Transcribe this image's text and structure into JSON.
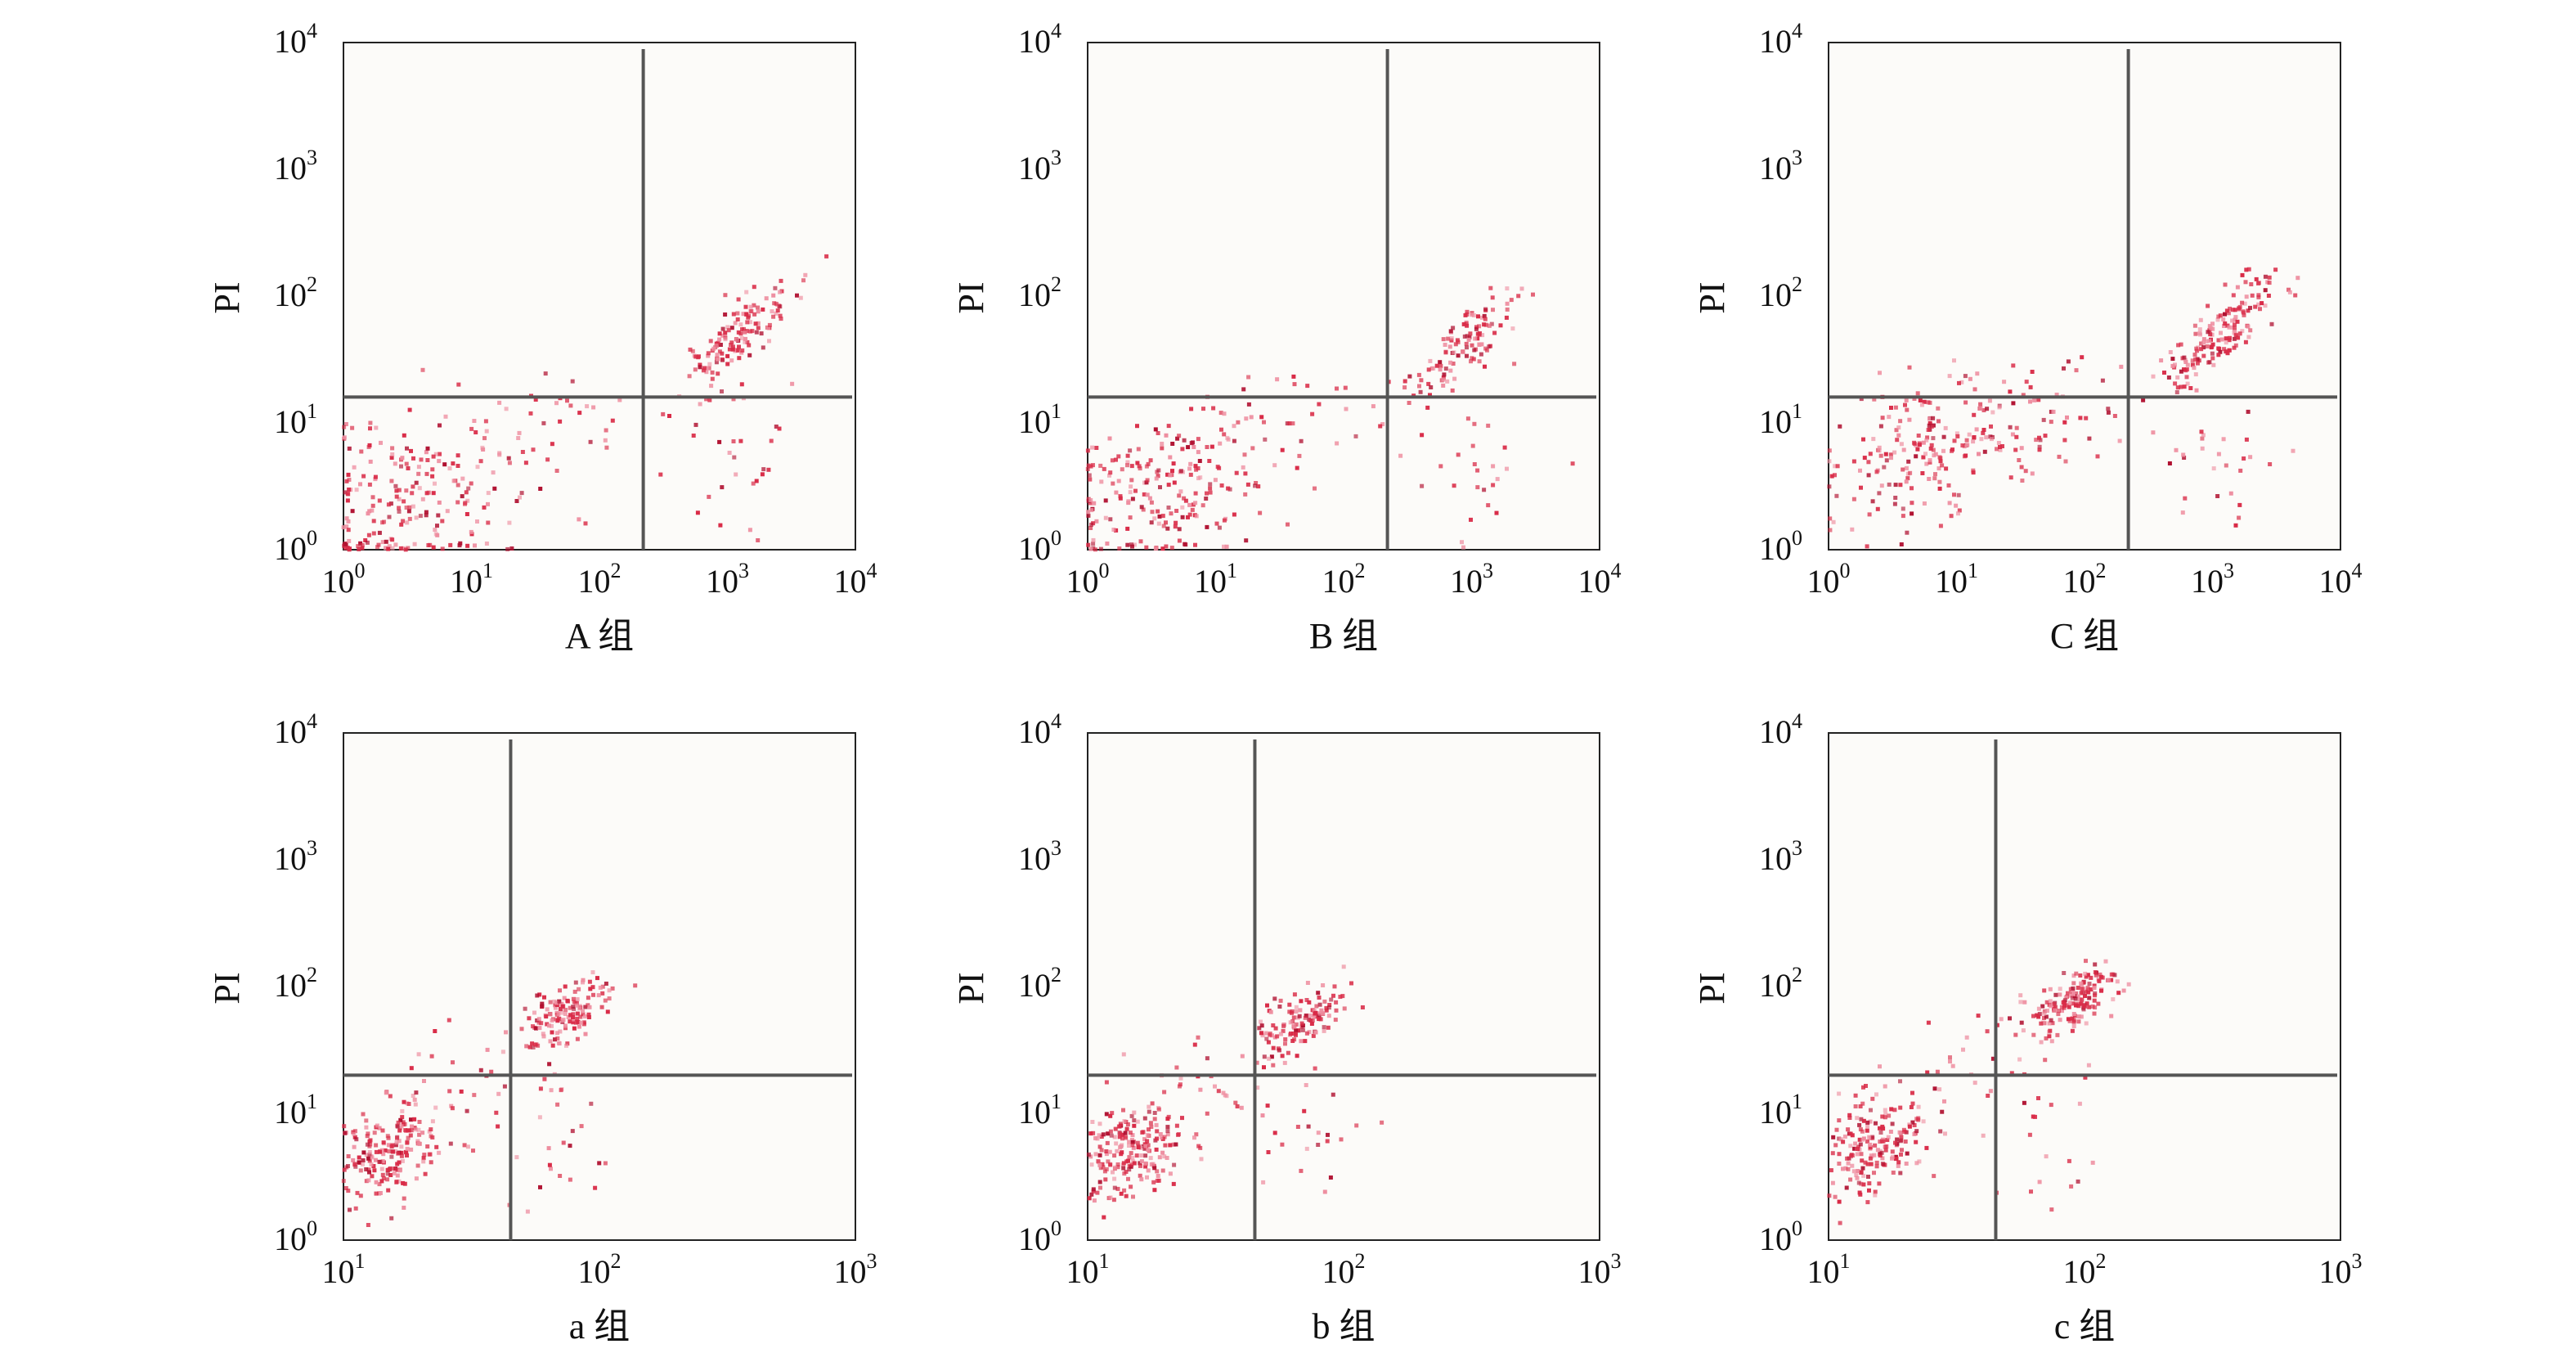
{
  "colors": {
    "point": "#d92b47",
    "point_light": "#ee8ea0",
    "point_dark": "#b01030",
    "gate": "#555555",
    "frame": "#222222",
    "plot_bg": "#fcfbf9"
  },
  "chart_data": [
    {
      "type": "scatter",
      "xlabel": "A 组",
      "ylabel": "PI",
      "xscale": "log",
      "yscale": "log",
      "xlim": [
        1,
        10000
      ],
      "ylim": [
        1,
        10000
      ],
      "x_ticks": [
        {
          "base": "10",
          "exp": "0"
        },
        {
          "base": "10",
          "exp": "1"
        },
        {
          "base": "10",
          "exp": "2"
        },
        {
          "base": "10",
          "exp": "3"
        },
        {
          "base": "10",
          "exp": "4"
        }
      ],
      "y_ticks": [
        {
          "base": "10",
          "exp": "0"
        },
        {
          "base": "10",
          "exp": "1"
        },
        {
          "base": "10",
          "exp": "2"
        },
        {
          "base": "10",
          "exp": "3"
        },
        {
          "base": "10",
          "exp": "4"
        }
      ],
      "gate": {
        "x": 220,
        "y": 16
      },
      "clusters": [
        {
          "cx": 3.5,
          "cy": 2.5,
          "sx": 0.45,
          "sy": 0.32,
          "n": 220,
          "rho": 0.2
        },
        {
          "cx": 1200,
          "cy": 45,
          "sx": 0.22,
          "sy": 0.22,
          "n": 150,
          "rho": 0.8
        },
        {
          "cx": 1000,
          "cy": 5,
          "sx": 0.25,
          "sy": 0.3,
          "n": 26,
          "rho": 0
        },
        {
          "cx": 60,
          "cy": 12,
          "sx": 0.5,
          "sy": 0.25,
          "n": 24,
          "rho": 0
        }
      ]
    },
    {
      "type": "scatter",
      "xlabel": "B 组",
      "ylabel": "PI",
      "xscale": "log",
      "yscale": "log",
      "xlim": [
        1,
        10000
      ],
      "ylim": [
        1,
        10000
      ],
      "x_ticks": [
        {
          "base": "10",
          "exp": "0"
        },
        {
          "base": "10",
          "exp": "1"
        },
        {
          "base": "10",
          "exp": "2"
        },
        {
          "base": "10",
          "exp": "3"
        },
        {
          "base": "10",
          "exp": "4"
        }
      ],
      "y_ticks": [
        {
          "base": "10",
          "exp": "0"
        },
        {
          "base": "10",
          "exp": "1"
        },
        {
          "base": "10",
          "exp": "2"
        },
        {
          "base": "10",
          "exp": "3"
        },
        {
          "base": "10",
          "exp": "4"
        }
      ],
      "gate": {
        "x": 220,
        "y": 16
      },
      "clusters": [
        {
          "cx": 4,
          "cy": 3,
          "sx": 0.45,
          "sy": 0.32,
          "n": 230,
          "rho": 0.3
        },
        {
          "cx": 900,
          "cy": 40,
          "sx": 0.22,
          "sy": 0.22,
          "n": 120,
          "rho": 0.8
        },
        {
          "cx": 900,
          "cy": 5,
          "sx": 0.25,
          "sy": 0.3,
          "n": 24,
          "rho": 0
        },
        {
          "cx": 60,
          "cy": 12,
          "sx": 0.5,
          "sy": 0.25,
          "n": 24,
          "rho": 0
        }
      ]
    },
    {
      "type": "scatter",
      "xlabel": "C 组",
      "ylabel": "PI",
      "xscale": "log",
      "yscale": "log",
      "xlim": [
        1,
        10000
      ],
      "ylim": [
        1,
        10000
      ],
      "x_ticks": [
        {
          "base": "10",
          "exp": "0"
        },
        {
          "base": "10",
          "exp": "1"
        },
        {
          "base": "10",
          "exp": "2"
        },
        {
          "base": "10",
          "exp": "3"
        },
        {
          "base": "10",
          "exp": "4"
        }
      ],
      "y_ticks": [
        {
          "base": "10",
          "exp": "0"
        },
        {
          "base": "10",
          "exp": "1"
        },
        {
          "base": "10",
          "exp": "2"
        },
        {
          "base": "10",
          "exp": "3"
        },
        {
          "base": "10",
          "exp": "4"
        }
      ],
      "gate": {
        "x": 220,
        "y": 16
      },
      "clusters": [
        {
          "cx": 7,
          "cy": 6,
          "sx": 0.45,
          "sy": 0.28,
          "n": 230,
          "rho": 0.3
        },
        {
          "cx": 1100,
          "cy": 50,
          "sx": 0.22,
          "sy": 0.22,
          "n": 170,
          "rho": 0.8
        },
        {
          "cx": 1000,
          "cy": 5,
          "sx": 0.25,
          "sy": 0.3,
          "n": 26,
          "rho": 0
        },
        {
          "cx": 80,
          "cy": 12,
          "sx": 0.5,
          "sy": 0.25,
          "n": 24,
          "rho": 0
        }
      ]
    },
    {
      "type": "scatter",
      "xlabel": "a 组",
      "ylabel": "PI",
      "xscale": "log",
      "yscale": "log",
      "xlim": [
        10,
        1000
      ],
      "ylim": [
        1,
        10000
      ],
      "x_ticks": [
        {
          "base": "10",
          "exp": "1"
        },
        {
          "base": "10",
          "exp": "2"
        },
        {
          "base": "10",
          "exp": "3"
        }
      ],
      "y_ticks": [
        {
          "base": "10",
          "exp": "0"
        },
        {
          "base": "10",
          "exp": "1"
        },
        {
          "base": "10",
          "exp": "2"
        },
        {
          "base": "10",
          "exp": "3"
        },
        {
          "base": "10",
          "exp": "4"
        }
      ],
      "gate": {
        "x": 45,
        "y": 20
      },
      "clusters": [
        {
          "cx": 15,
          "cy": 5,
          "sx": 0.1,
          "sy": 0.2,
          "n": 200,
          "rho": 0.3
        },
        {
          "cx": 75,
          "cy": 60,
          "sx": 0.08,
          "sy": 0.15,
          "n": 150,
          "rho": 0.6
        },
        {
          "cx": 70,
          "cy": 6,
          "sx": 0.12,
          "sy": 0.3,
          "n": 24,
          "rho": 0
        },
        {
          "cx": 30,
          "cy": 18,
          "sx": 0.18,
          "sy": 0.3,
          "n": 30,
          "rho": 0.3
        }
      ]
    },
    {
      "type": "scatter",
      "xlabel": "b 组",
      "ylabel": "PI",
      "xscale": "log",
      "yscale": "log",
      "xlim": [
        10,
        1000
      ],
      "ylim": [
        1,
        10000
      ],
      "x_ticks": [
        {
          "base": "10",
          "exp": "1"
        },
        {
          "base": "10",
          "exp": "2"
        },
        {
          "base": "10",
          "exp": "3"
        }
      ],
      "y_ticks": [
        {
          "base": "10",
          "exp": "0"
        },
        {
          "base": "10",
          "exp": "1"
        },
        {
          "base": "10",
          "exp": "2"
        },
        {
          "base": "10",
          "exp": "3"
        },
        {
          "base": "10",
          "exp": "4"
        }
      ],
      "gate": {
        "x": 45,
        "y": 20
      },
      "clusters": [
        {
          "cx": 15,
          "cy": 5,
          "sx": 0.1,
          "sy": 0.2,
          "n": 210,
          "rho": 0.3
        },
        {
          "cx": 70,
          "cy": 55,
          "sx": 0.08,
          "sy": 0.15,
          "n": 130,
          "rho": 0.6
        },
        {
          "cx": 70,
          "cy": 6,
          "sx": 0.12,
          "sy": 0.3,
          "n": 24,
          "rho": 0
        },
        {
          "cx": 30,
          "cy": 18,
          "sx": 0.18,
          "sy": 0.3,
          "n": 30,
          "rho": 0.3
        }
      ]
    },
    {
      "type": "scatter",
      "xlabel": "c 组",
      "ylabel": "PI",
      "xscale": "log",
      "yscale": "log",
      "xlim": [
        10,
        1000
      ],
      "ylim": [
        1,
        10000
      ],
      "x_ticks": [
        {
          "base": "10",
          "exp": "1"
        },
        {
          "base": "10",
          "exp": "2"
        },
        {
          "base": "10",
          "exp": "3"
        }
      ],
      "y_ticks": [
        {
          "base": "10",
          "exp": "0"
        },
        {
          "base": "10",
          "exp": "1"
        },
        {
          "base": "10",
          "exp": "2"
        },
        {
          "base": "10",
          "exp": "3"
        },
        {
          "base": "10",
          "exp": "4"
        }
      ],
      "gate": {
        "x": 45,
        "y": 20
      },
      "clusters": [
        {
          "cx": 15,
          "cy": 5.5,
          "sx": 0.1,
          "sy": 0.2,
          "n": 190,
          "rho": 0.3
        },
        {
          "cx": 90,
          "cy": 80,
          "sx": 0.09,
          "sy": 0.13,
          "n": 160,
          "rho": 0.6
        },
        {
          "cx": 80,
          "cy": 7,
          "sx": 0.12,
          "sy": 0.3,
          "n": 20,
          "rho": 0
        },
        {
          "cx": 35,
          "cy": 22,
          "sx": 0.18,
          "sy": 0.3,
          "n": 34,
          "rho": 0.5
        }
      ]
    }
  ]
}
